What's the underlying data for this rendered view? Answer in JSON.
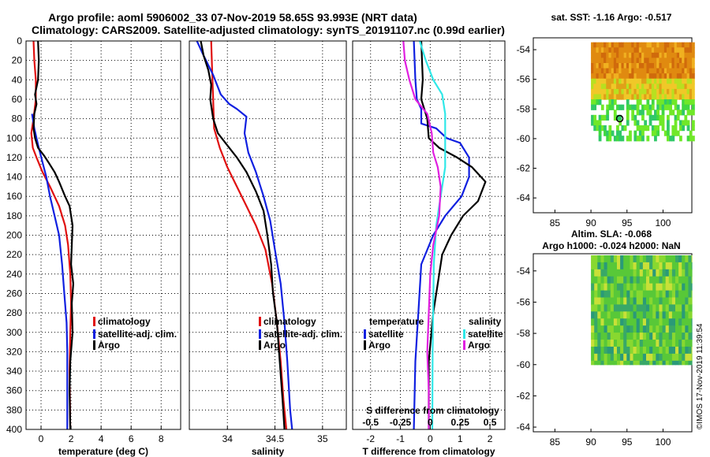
{
  "title_line1": "Argo profile: aoml 5906002_33 07-Nov-2019 58.65S 93.993E (NRT data)",
  "title_line2": "Climatology: CARS2009. Satellite-adjusted climatology: synTS_20191107.nc (0.99d earlier)",
  "depth_ticks": [
    "0",
    "20",
    "40",
    "60",
    "80",
    "100",
    "120",
    "140",
    "160",
    "180",
    "200",
    "220",
    "240",
    "260",
    "280",
    "300",
    "320",
    "340",
    "360",
    "380",
    "400"
  ],
  "colors": {
    "climatology": "#e01010",
    "satellite": "#1020e0",
    "argo": "#000000",
    "sal_satellite": "#30e8e8",
    "sal_argo": "#e020e0"
  },
  "chart_data": [
    {
      "type": "line",
      "title": "",
      "xlabel": "temperature (deg C)",
      "ylabel": "",
      "xlim": [
        -1,
        9.3
      ],
      "ylim": [
        400,
        0
      ],
      "xtick_labels": [
        "0",
        "2",
        "4",
        "6",
        "8"
      ],
      "xticks": [
        0,
        2,
        4,
        6,
        8
      ],
      "legend": [
        "climatology",
        "satellite-adj. clim.",
        "Argo"
      ],
      "series": [
        {
          "name": "climatology",
          "color": "#e01010",
          "points": [
            [
              -0.5,
              0
            ],
            [
              -0.45,
              20
            ],
            [
              -0.35,
              40
            ],
            [
              -0.35,
              60
            ],
            [
              -0.5,
              80
            ],
            [
              -0.65,
              95
            ],
            [
              -0.55,
              110
            ],
            [
              -0.3,
              120
            ],
            [
              0.1,
              135
            ],
            [
              0.6,
              150
            ],
            [
              1.2,
              170
            ],
            [
              1.6,
              190
            ],
            [
              1.8,
              210
            ],
            [
              1.95,
              240
            ],
            [
              2.0,
              270
            ],
            [
              1.95,
              300
            ],
            [
              1.9,
              340
            ],
            [
              1.95,
              400
            ]
          ]
        },
        {
          "name": "satellite-adj. clim.",
          "color": "#1020e0",
          "points": [
            [
              -0.6,
              75
            ],
            [
              -0.45,
              90
            ],
            [
              -0.3,
              100
            ],
            [
              -0.15,
              110
            ],
            [
              0.1,
              125
            ],
            [
              0.35,
              140
            ],
            [
              0.6,
              160
            ],
            [
              0.9,
              180
            ],
            [
              1.2,
              200
            ],
            [
              1.4,
              230
            ],
            [
              1.55,
              260
            ],
            [
              1.7,
              290
            ],
            [
              1.75,
              320
            ],
            [
              1.75,
              400
            ]
          ]
        },
        {
          "name": "Argo",
          "color": "#000000",
          "points": [
            [
              -0.2,
              0
            ],
            [
              -0.15,
              20
            ],
            [
              -0.2,
              40
            ],
            [
              -0.4,
              55
            ],
            [
              -0.3,
              65
            ],
            [
              -0.45,
              75
            ],
            [
              -0.5,
              90
            ],
            [
              -0.4,
              100
            ],
            [
              -0.2,
              110
            ],
            [
              0.2,
              118
            ],
            [
              0.5,
              125
            ],
            [
              0.9,
              135
            ],
            [
              1.2,
              145
            ],
            [
              1.6,
              160
            ],
            [
              1.9,
              170
            ],
            [
              2.1,
              190
            ],
            [
              2.05,
              210
            ],
            [
              2.0,
              230
            ],
            [
              2.15,
              250
            ],
            [
              2.05,
              270
            ],
            [
              2.1,
              300
            ],
            [
              1.95,
              330
            ],
            [
              1.9,
              360
            ],
            [
              1.95,
              400
            ]
          ]
        }
      ]
    },
    {
      "type": "line",
      "title": "",
      "xlabel": "salinity",
      "ylabel": "",
      "xlim": [
        33.6,
        35.25
      ],
      "ylim": [
        400,
        0
      ],
      "xtick_labels": [
        "34",
        "34.5",
        "35"
      ],
      "xticks": [
        34,
        34.5,
        35
      ],
      "legend": [
        "climatology",
        "satellite-adj. clim.",
        "Argo"
      ],
      "series": [
        {
          "name": "climatology",
          "color": "#e01010",
          "points": [
            [
              33.83,
              0
            ],
            [
              33.84,
              30
            ],
            [
              33.85,
              60
            ],
            [
              33.86,
              90
            ],
            [
              33.92,
              110
            ],
            [
              34.0,
              130
            ],
            [
              34.1,
              150
            ],
            [
              34.2,
              170
            ],
            [
              34.3,
              190
            ],
            [
              34.4,
              215
            ],
            [
              34.47,
              250
            ],
            [
              34.52,
              290
            ],
            [
              34.56,
              330
            ],
            [
              34.59,
              370
            ],
            [
              34.62,
              400
            ]
          ]
        },
        {
          "name": "satellite-adj. clim.",
          "color": "#1020e0",
          "points": [
            [
              33.68,
              0
            ],
            [
              33.75,
              15
            ],
            [
              33.85,
              35
            ],
            [
              33.93,
              55
            ],
            [
              34.02,
              65
            ],
            [
              34.1,
              70
            ],
            [
              34.2,
              78
            ],
            [
              34.18,
              95
            ],
            [
              34.22,
              115
            ],
            [
              34.3,
              135
            ],
            [
              34.38,
              160
            ],
            [
              34.45,
              185
            ],
            [
              34.5,
              215
            ],
            [
              34.56,
              250
            ],
            [
              34.6,
              290
            ],
            [
              34.63,
              330
            ],
            [
              34.66,
              380
            ],
            [
              34.68,
              400
            ]
          ]
        },
        {
          "name": "Argo",
          "color": "#000000",
          "points": [
            [
              33.72,
              0
            ],
            [
              33.75,
              15
            ],
            [
              33.8,
              30
            ],
            [
              33.83,
              45
            ],
            [
              33.82,
              60
            ],
            [
              33.85,
              80
            ],
            [
              33.9,
              95
            ],
            [
              33.98,
              105
            ],
            [
              34.1,
              120
            ],
            [
              34.2,
              135
            ],
            [
              34.3,
              155
            ],
            [
              34.38,
              175
            ],
            [
              34.42,
              200
            ],
            [
              34.46,
              230
            ],
            [
              34.48,
              260
            ],
            [
              34.52,
              290
            ],
            [
              34.55,
              330
            ],
            [
              34.58,
              370
            ],
            [
              34.6,
              400
            ]
          ]
        }
      ]
    },
    {
      "type": "line",
      "title": "",
      "xlabel": "T difference from climatology",
      "x2label": "S difference from climatology",
      "ylabel": "",
      "xlim": [
        -2.6,
        2.5
      ],
      "ylim": [
        400,
        0
      ],
      "xtick_labels": [
        "-2",
        "-1",
        "0",
        "1",
        "2"
      ],
      "xticks": [
        -2,
        -1,
        0,
        1,
        2
      ],
      "x2tick_labels": [
        "-0.5",
        "-0.25",
        "0",
        "0.25",
        "0.5"
      ],
      "legend": [
        "temperature",
        "satellite",
        "Argo",
        "salinity",
        "satellite",
        "Argo"
      ],
      "series": [
        {
          "name": "temperature satellite",
          "color": "#1020e0",
          "points": [
            [
              -0.55,
              0
            ],
            [
              -0.5,
              40
            ],
            [
              -0.45,
              60
            ],
            [
              -0.3,
              70
            ],
            [
              -0.3,
              85
            ],
            [
              0.2,
              90
            ],
            [
              0.55,
              100
            ],
            [
              1.0,
              105
            ],
            [
              1.3,
              120
            ],
            [
              1.3,
              140
            ],
            [
              1.05,
              160
            ],
            [
              0.5,
              180
            ],
            [
              0.1,
              200
            ],
            [
              -0.3,
              230
            ],
            [
              -0.4,
              280
            ],
            [
              -0.5,
              330
            ],
            [
              -0.55,
              400
            ]
          ]
        },
        {
          "name": "temperature Argo",
          "color": "#000000",
          "points": [
            [
              -0.3,
              0
            ],
            [
              -0.25,
              40
            ],
            [
              -0.3,
              60
            ],
            [
              -0.1,
              80
            ],
            [
              -0.05,
              100
            ],
            [
              0.3,
              110
            ],
            [
              0.9,
              120
            ],
            [
              1.4,
              130
            ],
            [
              1.85,
              145
            ],
            [
              1.6,
              165
            ],
            [
              1.1,
              180
            ],
            [
              0.7,
              200
            ],
            [
              0.4,
              220
            ],
            [
              0.25,
              250
            ],
            [
              0.1,
              280
            ],
            [
              -0.05,
              330
            ],
            [
              -0.05,
              400
            ]
          ]
        },
        {
          "name": "salinity satellite",
          "color": "#30e8e8",
          "points": [
            [
              -0.35,
              0
            ],
            [
              -0.15,
              20
            ],
            [
              0.1,
              40
            ],
            [
              0.4,
              55
            ],
            [
              0.5,
              75
            ],
            [
              0.5,
              100
            ],
            [
              0.5,
              130
            ],
            [
              0.35,
              160
            ],
            [
              0.2,
              190
            ],
            [
              0.12,
              230
            ],
            [
              0.1,
              270
            ],
            [
              0.08,
              320
            ],
            [
              0.07,
              400
            ]
          ]
        },
        {
          "name": "salinity Argo",
          "color": "#e020e0",
          "points": [
            [
              -0.9,
              0
            ],
            [
              -0.85,
              20
            ],
            [
              -0.7,
              40
            ],
            [
              -0.5,
              60
            ],
            [
              -0.1,
              75
            ],
            [
              0.05,
              95
            ],
            [
              0.1,
              115
            ],
            [
              0.25,
              130
            ],
            [
              0.35,
              150
            ],
            [
              0.3,
              180
            ],
            [
              0.1,
              210
            ],
            [
              0.0,
              240
            ],
            [
              -0.05,
              280
            ],
            [
              -0.1,
              320
            ],
            [
              -0.05,
              360
            ],
            [
              -0.05,
              400
            ]
          ]
        }
      ]
    }
  ],
  "map1": {
    "title": "sat. SST: -1.16  Argo: -0.517",
    "lat_ticks": [
      "-54",
      "-56",
      "-58",
      "-60",
      "-62",
      "-64"
    ],
    "lon_ticks": [
      "85",
      "90",
      "95",
      "100"
    ],
    "argo_lon": 93.993,
    "argo_lat": -58.65
  },
  "map2": {
    "title_line1": "Altim. SLA: -0.068",
    "title_line2": "Argo h1000: -0.024 h2000: NaN",
    "lat_ticks": [
      "-54",
      "-56",
      "-58",
      "-60",
      "-62",
      "-64"
    ],
    "lon_ticks": [
      "85",
      "90",
      "95",
      "100"
    ]
  },
  "timestamp": "©IMOS 17-Nov-2019 11:39:54"
}
